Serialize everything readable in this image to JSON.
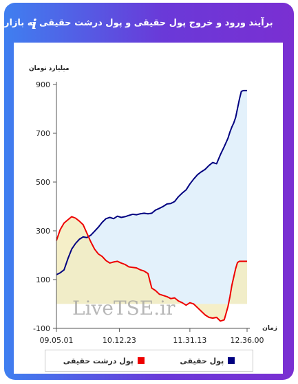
{
  "header": {
    "title": "برآیند ورود و خروج پول حقیقی و پول درشت حقیقی به بازار",
    "info_glyph": "i"
  },
  "watermark": "LiveTSE.ir",
  "colors": {
    "real_money": "#000080",
    "real_money_fill": "#e3f1fb",
    "big_real_money": "#ee0000",
    "big_real_money_fill": "#f3ecbe"
  },
  "chart_data": {
    "type": "area",
    "ylabel": "میلیارد تومان",
    "xlabel": "زمان",
    "ylim": [
      -100,
      900
    ],
    "yticks": [
      900,
      700,
      500,
      300,
      100,
      -100
    ],
    "xlim": [
      0,
      100
    ],
    "xtick_positions": [
      0,
      33,
      70,
      100
    ],
    "xtick_labels": [
      "09.05.01",
      "10.12.23",
      "11.31.13",
      "12.36.00"
    ],
    "legend": [
      "پول حقیقی",
      "پول درشت حقیقی"
    ],
    "series": [
      {
        "name": "پول حقیقی",
        "x": [
          0,
          2,
          4,
          6,
          8,
          10,
          12,
          14,
          16,
          18,
          20,
          22,
          24,
          26,
          28,
          30,
          32,
          34,
          36,
          38,
          40,
          42,
          44,
          46,
          48,
          50,
          52,
          54,
          56,
          58,
          60,
          62,
          64,
          66,
          68,
          70,
          72,
          74,
          76,
          78,
          80,
          82,
          84,
          86,
          88,
          90,
          91,
          92,
          93,
          94,
          95,
          96,
          97,
          98,
          99,
          100
        ],
        "values": [
          120,
          128,
          140,
          185,
          225,
          248,
          265,
          275,
          272,
          282,
          298,
          315,
          335,
          350,
          355,
          350,
          360,
          355,
          358,
          363,
          368,
          366,
          370,
          372,
          370,
          372,
          385,
          392,
          400,
          410,
          412,
          420,
          440,
          455,
          468,
          492,
          512,
          530,
          542,
          552,
          568,
          580,
          575,
          612,
          645,
          680,
          705,
          725,
          742,
          765,
          802,
          840,
          872,
          875,
          875,
          875
        ]
      },
      {
        "name": "پول درشت حقیقی",
        "x": [
          0,
          2,
          4,
          6,
          8,
          10,
          12,
          14,
          16,
          18,
          20,
          22,
          24,
          26,
          28,
          30,
          32,
          34,
          36,
          38,
          40,
          42,
          44,
          46,
          48,
          50,
          52,
          54,
          56,
          58,
          60,
          62,
          64,
          66,
          68,
          70,
          72,
          74,
          76,
          78,
          80,
          82,
          84,
          86,
          88,
          90,
          91,
          92,
          93,
          94,
          95,
          96,
          97,
          98,
          99,
          100
        ],
        "values": [
          260,
          305,
          332,
          345,
          358,
          352,
          340,
          325,
          290,
          255,
          225,
          205,
          195,
          178,
          168,
          172,
          175,
          168,
          162,
          152,
          150,
          148,
          140,
          135,
          125,
          65,
          55,
          40,
          35,
          30,
          22,
          25,
          12,
          5,
          -5,
          5,
          0,
          -15,
          -30,
          -45,
          -55,
          -58,
          -55,
          -70,
          -65,
          -10,
          30,
          75,
          110,
          145,
          170,
          175,
          175,
          175,
          175,
          175
        ]
      }
    ]
  }
}
